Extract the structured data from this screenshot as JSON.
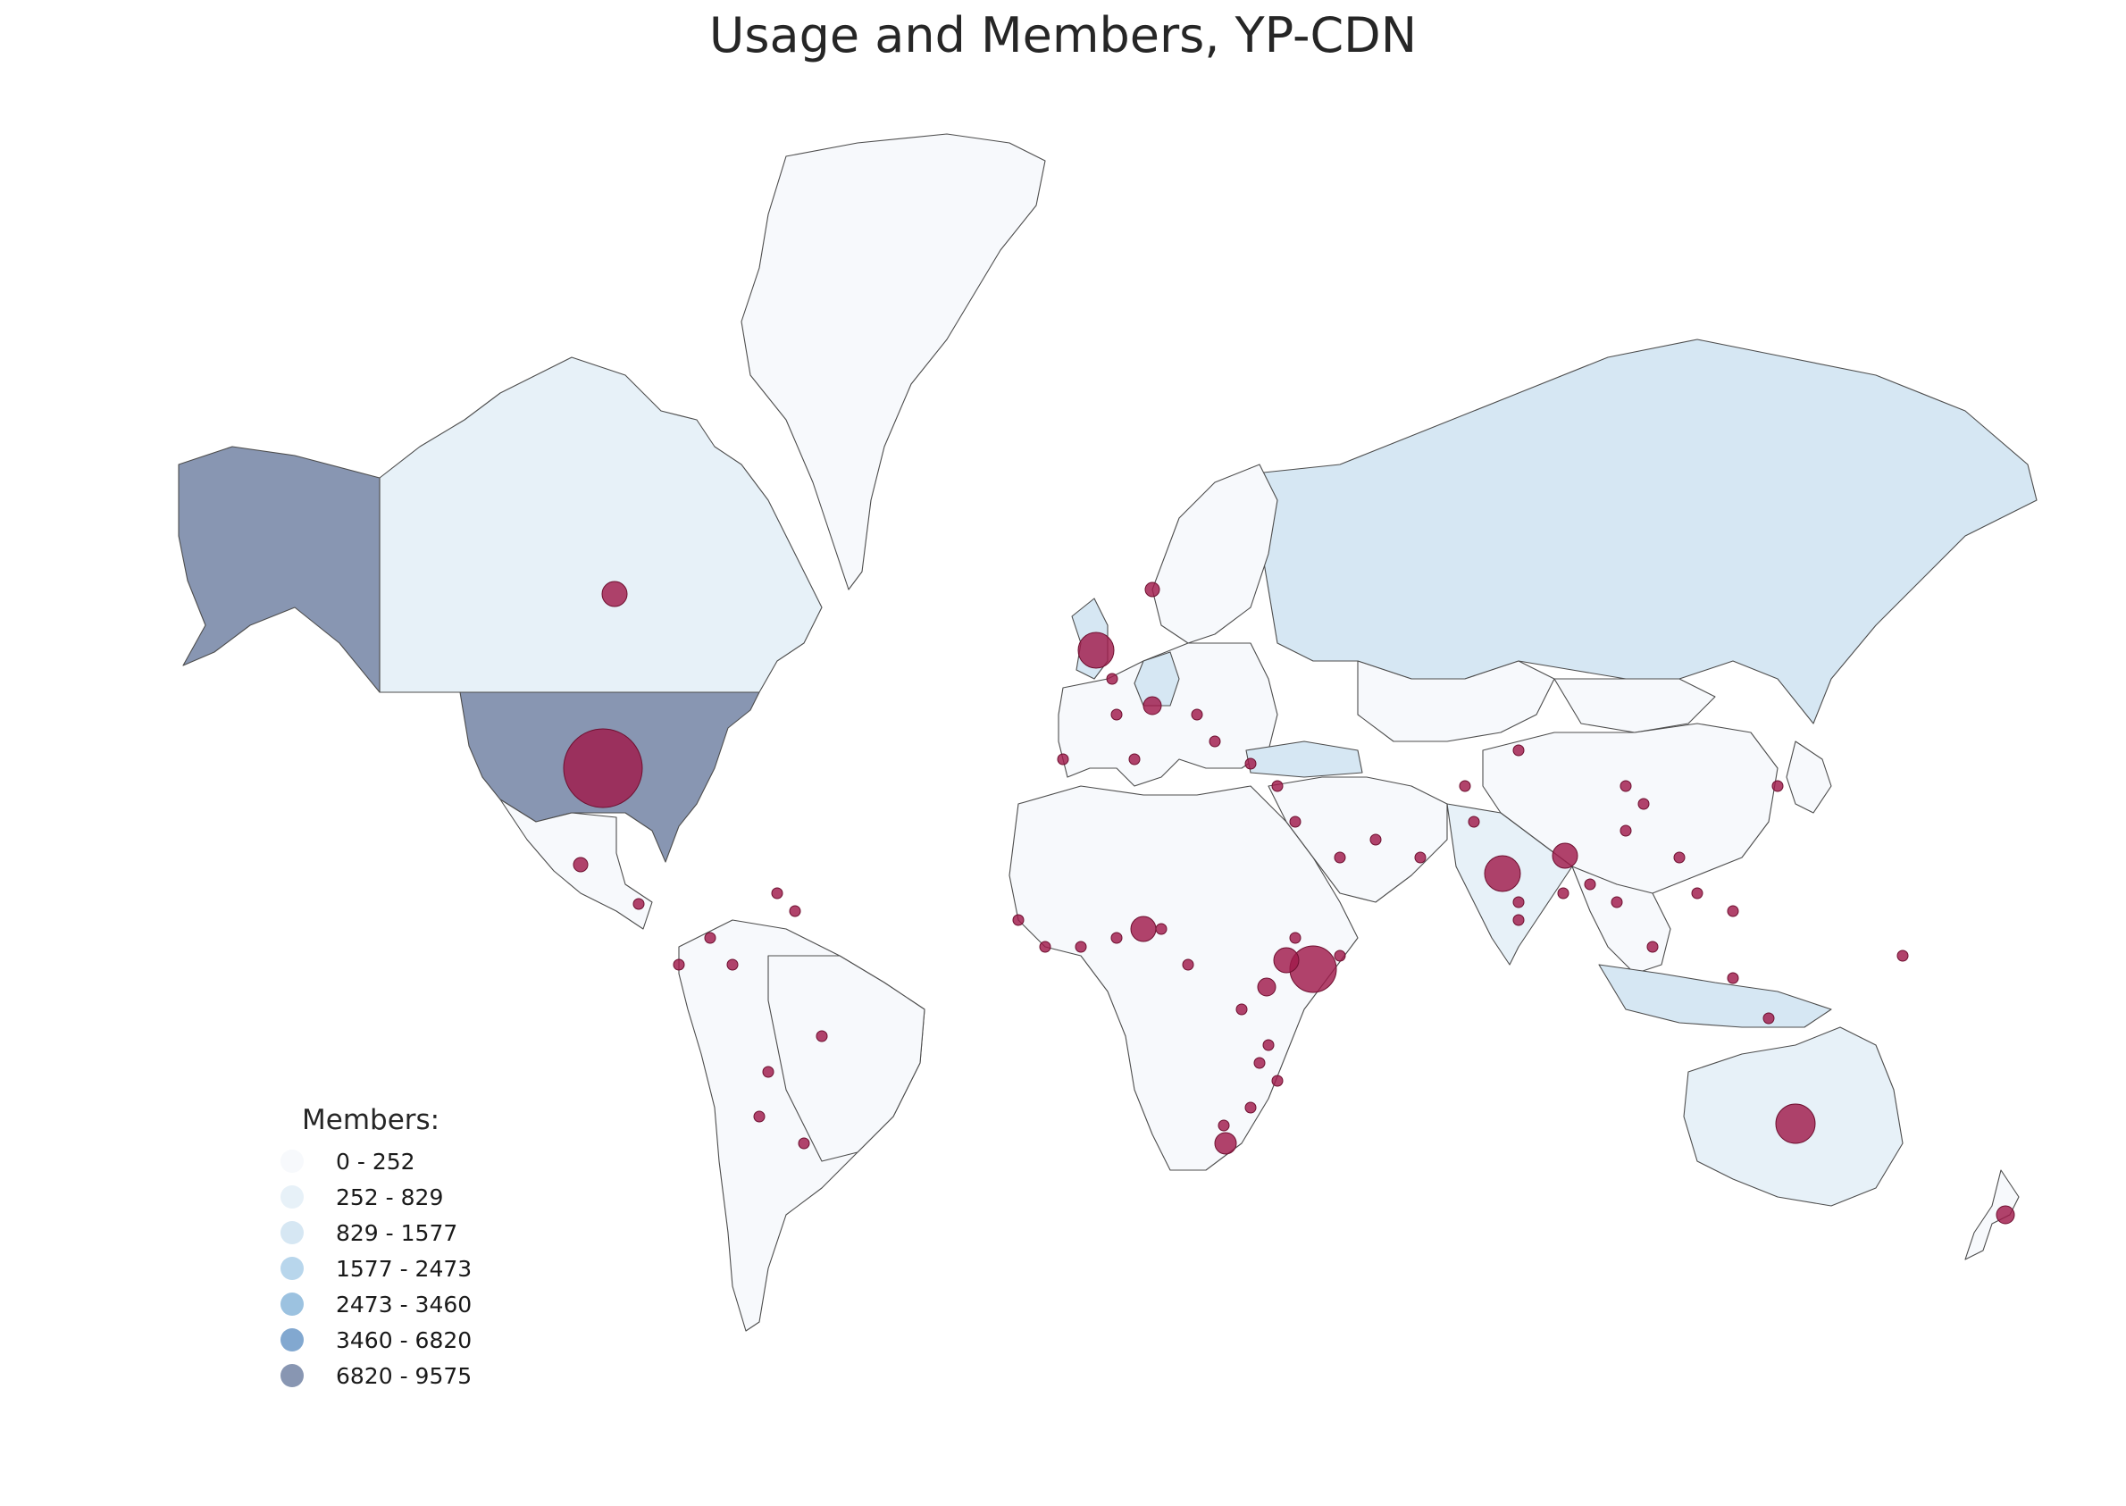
{
  "title": "Usage and Members, YP-CDN",
  "legend": {
    "title": "Members:",
    "bins": [
      {
        "label": "0 - 252",
        "color": "#f7f9fc"
      },
      {
        "label": "252 - 829",
        "color": "#e7f1f8"
      },
      {
        "label": "829 - 1577",
        "color": "#d6e7f3"
      },
      {
        "label": "1577 - 2473",
        "color": "#b8d6ec"
      },
      {
        "label": "2473 - 3460",
        "color": "#9cc2e0"
      },
      {
        "label": "3460 - 6820",
        "color": "#82a8d0"
      },
      {
        "label": "6820 - 9575",
        "color": "#8896b2"
      }
    ]
  },
  "colors": {
    "usage_bubble": "#a01a4a",
    "map_border": "#4d4d4d",
    "background": "#ffffff"
  },
  "regions": [
    {
      "name": "Greenland",
      "members_bin": 0
    },
    {
      "name": "Canada",
      "members_bin": 1
    },
    {
      "name": "USA",
      "members_bin": 6
    },
    {
      "name": "Alaska",
      "members_bin": 6
    },
    {
      "name": "Mexico",
      "members_bin": 0
    },
    {
      "name": "South America",
      "members_bin": 0
    },
    {
      "name": "Brazil",
      "members_bin": 0
    },
    {
      "name": "Russia",
      "members_bin": 2
    },
    {
      "name": "Europe",
      "members_bin": 0
    },
    {
      "name": "UK",
      "members_bin": 2
    },
    {
      "name": "Germany",
      "members_bin": 2
    },
    {
      "name": "Scandinavia",
      "members_bin": 0
    },
    {
      "name": "Africa",
      "members_bin": 0
    },
    {
      "name": "Middle East",
      "members_bin": 0
    },
    {
      "name": "Turkey",
      "members_bin": 2
    },
    {
      "name": "Kazakhstan",
      "members_bin": 0
    },
    {
      "name": "Mongolia",
      "members_bin": 0
    },
    {
      "name": "China",
      "members_bin": 0
    },
    {
      "name": "India",
      "members_bin": 1
    },
    {
      "name": "Southeast Asia",
      "members_bin": 0
    },
    {
      "name": "Indonesia",
      "members_bin": 2
    },
    {
      "name": "Japan",
      "members_bin": 0
    },
    {
      "name": "Australia",
      "members_bin": 1
    },
    {
      "name": "New Zealand",
      "members_bin": 0
    }
  ]
}
